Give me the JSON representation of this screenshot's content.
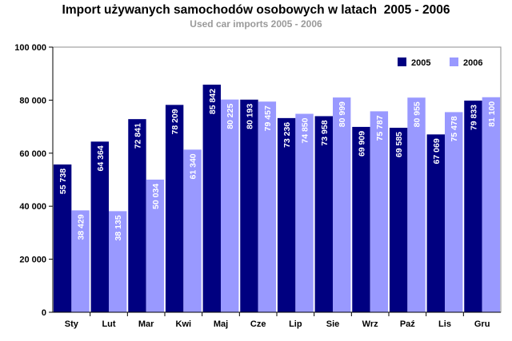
{
  "chart_data": {
    "type": "bar",
    "title": "Import używanych samochodów osobowych w latach  2005 - 2006",
    "subtitle": "Used car imports 2005 - 2006",
    "categories": [
      "Sty",
      "Lut",
      "Mar",
      "Kwi",
      "Maj",
      "Cze",
      "Lip",
      "Sie",
      "Wrz",
      "Paź",
      "Lis",
      "Gru"
    ],
    "series": [
      {
        "name": "2005",
        "color": "#000080",
        "values": [
          55738,
          64364,
          72841,
          78209,
          85842,
          80193,
          73236,
          73958,
          69909,
          69585,
          67069,
          79833
        ],
        "labels": [
          "55 738",
          "64 364",
          "72 841",
          "78 209",
          "85 842",
          "80 193",
          "73 236",
          "73 958",
          "69 909",
          "69 585",
          "67 069",
          "79 833"
        ]
      },
      {
        "name": "2006",
        "color": "#9999ff",
        "values": [
          38429,
          38135,
          50034,
          61340,
          80225,
          79457,
          74850,
          80999,
          75787,
          80955,
          75478,
          81100
        ],
        "labels": [
          "38 429",
          "38 135",
          "50 034",
          "61 340",
          "80 225",
          "79 457",
          "74 850",
          "80 999",
          "75 787",
          "80 955",
          "75 478",
          "81 100"
        ]
      }
    ],
    "ylim": [
      0,
      100000
    ],
    "yticks": [
      {
        "value": 0,
        "label": "0"
      },
      {
        "value": 20000,
        "label": "20 000"
      },
      {
        "value": 40000,
        "label": "40 000"
      },
      {
        "value": 60000,
        "label": "60 000"
      },
      {
        "value": 80000,
        "label": "80 000"
      },
      {
        "value": 100000,
        "label": "100 000"
      }
    ],
    "legend_position": "top-right",
    "grid": false
  }
}
